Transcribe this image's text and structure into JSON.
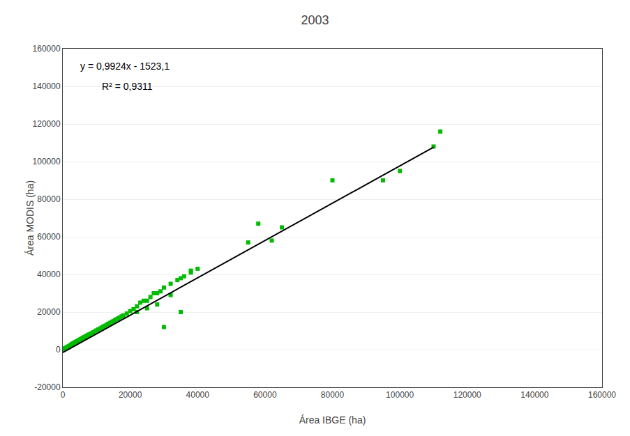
{
  "chart_data": {
    "type": "scatter",
    "title": "2003",
    "xlabel": "Área IBGE (ha)",
    "ylabel": "Área MODIS (ha)",
    "annotations": [
      "y = 0,9924x - 1523,1",
      "R² = 0,9311"
    ],
    "xlim": [
      0,
      160000
    ],
    "ylim": [
      -20000,
      160000
    ],
    "xticks": [
      0,
      20000,
      40000,
      60000,
      80000,
      100000,
      120000,
      140000,
      160000
    ],
    "yticks": [
      -20000,
      0,
      20000,
      40000,
      60000,
      80000,
      100000,
      120000,
      140000,
      160000
    ],
    "grid": "y",
    "series": [
      {
        "type": "scatter",
        "marker": "square",
        "color": "#00bb00",
        "x": [
          200,
          300,
          400,
          500,
          600,
          700,
          800,
          900,
          1000,
          1100,
          1200,
          1300,
          1400,
          1500,
          1600,
          1700,
          1800,
          1900,
          2000,
          2100,
          2200,
          2400,
          2600,
          2800,
          3000,
          3200,
          3400,
          3600,
          3800,
          4000,
          4200,
          4400,
          4600,
          4800,
          5000,
          5200,
          5400,
          5600,
          5800,
          6000,
          6200,
          6400,
          6600,
          6800,
          7000,
          7200,
          7400,
          7600,
          7800,
          8000,
          8500,
          9000,
          9500,
          10000,
          10500,
          11000,
          11500,
          12000,
          12500,
          13000,
          13500,
          14000,
          14500,
          15000,
          15500,
          16000,
          16500,
          17000,
          17500,
          18000,
          19000,
          20000,
          21000,
          22000,
          23000,
          24000,
          25000,
          26000,
          27000,
          28000,
          29000,
          30000,
          32000,
          34000,
          36000,
          38000,
          40000,
          22000,
          25000,
          28000,
          32000,
          35000,
          38000,
          30000,
          35000,
          55000,
          58000,
          62000,
          65000,
          80000,
          95000,
          100000,
          110000,
          112000
        ],
        "values": [
          100,
          200,
          300,
          400,
          500,
          600,
          700,
          800,
          900,
          1000,
          1100,
          1200,
          1300,
          1400,
          1500,
          1600,
          1700,
          1800,
          1900,
          2000,
          2200,
          2500,
          2700,
          3000,
          3200,
          3400,
          3600,
          3800,
          4000,
          4200,
          4400,
          4600,
          4800,
          5000,
          5200,
          5400,
          5600,
          5800,
          6000,
          6200,
          6400,
          6600,
          6800,
          7000,
          7200,
          7400,
          7600,
          7800,
          8000,
          8200,
          8700,
          9200,
          9700,
          10200,
          10700,
          11200,
          11700,
          12200,
          12700,
          13200,
          13700,
          14200,
          14700,
          15200,
          15700,
          16200,
          16700,
          17200,
          17700,
          18200,
          19200,
          20500,
          21500,
          23000,
          25000,
          26000,
          26000,
          28000,
          30000,
          30000,
          31000,
          33000,
          35000,
          37000,
          39000,
          42000,
          43000,
          20000,
          22000,
          24000,
          29000,
          38000,
          41000,
          12000,
          20000,
          57000,
          67000,
          58000,
          65000,
          90000,
          90000,
          95000,
          108000,
          116000
        ]
      },
      {
        "type": "line",
        "color": "#000000",
        "line_style": "solid",
        "x": [
          0,
          110000
        ],
        "values": [
          -1523.1,
          107640.9
        ]
      }
    ]
  }
}
